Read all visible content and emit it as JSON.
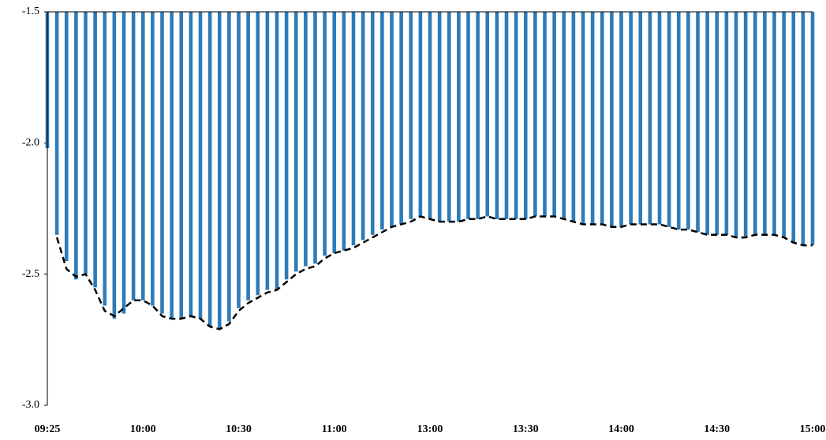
{
  "chart_data": {
    "type": "bar-line",
    "x": [
      "09:25",
      null,
      null,
      null,
      null,
      null,
      null,
      null,
      null,
      null,
      "10:00",
      null,
      null,
      null,
      null,
      null,
      null,
      null,
      null,
      null,
      "10:30",
      null,
      null,
      null,
      null,
      null,
      null,
      null,
      null,
      null,
      "11:00",
      null,
      null,
      null,
      null,
      null,
      null,
      null,
      null,
      null,
      "13:00",
      null,
      null,
      null,
      null,
      null,
      null,
      null,
      null,
      null,
      "13:30",
      null,
      null,
      null,
      null,
      null,
      null,
      null,
      null,
      null,
      "14:00",
      null,
      null,
      null,
      null,
      null,
      null,
      null,
      null,
      null,
      "14:30",
      null,
      null,
      null,
      null,
      null,
      null,
      null,
      null,
      null,
      "15:00"
    ],
    "ylim": [
      -3.0,
      -1.5
    ],
    "yticks": [
      {
        "value": -3.0,
        "label": "-3.0"
      },
      -2.5,
      {
        "value": -2.0,
        "label": "-2.0"
      },
      -1.5
    ],
    "series": [
      {
        "kind": "bar",
        "color": "#2e7bb8",
        "values": [
          -2.02,
          -2.35,
          -2.45,
          -2.52,
          -2.5,
          -2.55,
          -2.62,
          -2.67,
          -2.65,
          -2.6,
          -2.6,
          -2.62,
          -2.65,
          -2.67,
          -2.67,
          -2.66,
          -2.67,
          -2.7,
          -2.71,
          -2.68,
          -2.63,
          -2.6,
          -2.58,
          -2.56,
          -2.56,
          -2.52,
          -2.49,
          -2.47,
          -2.46,
          -2.43,
          -2.42,
          -2.41,
          -2.39,
          -2.37,
          -2.35,
          -2.33,
          -2.32,
          -2.31,
          -2.29,
          -2.28,
          -2.29,
          -2.3,
          -2.3,
          -2.3,
          -2.29,
          -2.29,
          -2.28,
          -2.29,
          -2.29,
          -2.29,
          -2.29,
          -2.28,
          -2.28,
          -2.28,
          -2.29,
          -2.3,
          -2.31,
          -2.31,
          -2.31,
          -2.32,
          -2.32,
          -2.31,
          -2.31,
          -2.31,
          -2.31,
          -2.32,
          -2.33,
          -2.33,
          -2.34,
          -2.35,
          -2.35,
          -2.35,
          -2.36,
          -2.36,
          -2.35,
          -2.35,
          -2.35,
          -2.36,
          -2.38,
          -2.39,
          -2.39
        ]
      },
      {
        "kind": "line",
        "color": "#000000",
        "dashed": true,
        "values": [
          null,
          -2.36,
          -2.48,
          -2.51,
          -2.5,
          -2.56,
          -2.64,
          -2.66,
          -2.63,
          -2.6,
          -2.6,
          -2.62,
          -2.66,
          -2.67,
          -2.67,
          -2.66,
          -2.67,
          -2.7,
          -2.71,
          -2.69,
          -2.64,
          -2.61,
          -2.59,
          -2.57,
          -2.56,
          -2.53,
          -2.5,
          -2.48,
          -2.47,
          -2.44,
          -2.42,
          -2.41,
          -2.4,
          -2.38,
          -2.36,
          -2.34,
          -2.32,
          -2.31,
          -2.3,
          -2.28,
          -2.29,
          -2.3,
          -2.3,
          -2.3,
          -2.29,
          -2.29,
          -2.28,
          -2.29,
          -2.29,
          -2.29,
          -2.29,
          -2.28,
          -2.28,
          -2.28,
          -2.29,
          -2.3,
          -2.31,
          -2.31,
          -2.31,
          -2.32,
          -2.32,
          -2.31,
          -2.31,
          -2.31,
          -2.31,
          -2.32,
          -2.33,
          -2.33,
          -2.34,
          -2.35,
          -2.35,
          -2.35,
          -2.36,
          -2.36,
          -2.35,
          -2.35,
          -2.35,
          -2.36,
          -2.38,
          -2.39,
          -2.39
        ]
      }
    ]
  }
}
